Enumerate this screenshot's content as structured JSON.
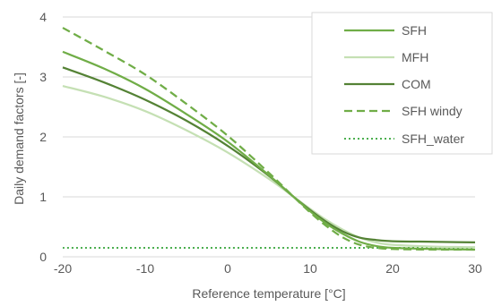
{
  "chart_data": {
    "type": "line",
    "title": "",
    "xlabel": "Reference temperature [°C]",
    "ylabel": "Daily demand factors [-]",
    "xlim": [
      -20,
      30
    ],
    "ylim": [
      0,
      4
    ],
    "x_ticks": [
      "-20",
      "-10",
      "0",
      "10",
      "20",
      "30"
    ],
    "y_ticks": [
      "0",
      "1",
      "2",
      "3",
      "4"
    ],
    "grid": "horizontal",
    "legend_position": "top-right",
    "x": [
      -20,
      -15,
      -10,
      -5,
      0,
      5,
      8,
      10,
      12,
      14,
      16,
      18,
      20,
      25,
      30
    ],
    "series": [
      {
        "name": "SFH",
        "color": "#70ad47",
        "dash": "solid",
        "values": [
          3.42,
          3.14,
          2.8,
          2.38,
          1.92,
          1.36,
          1.0,
          0.76,
          0.55,
          0.38,
          0.25,
          0.18,
          0.15,
          0.13,
          0.12
        ]
      },
      {
        "name": "MFH",
        "color": "#c5e0b4",
        "dash": "solid",
        "values": [
          2.85,
          2.67,
          2.43,
          2.11,
          1.74,
          1.3,
          1.0,
          0.8,
          0.61,
          0.45,
          0.32,
          0.24,
          0.2,
          0.17,
          0.16
        ]
      },
      {
        "name": "COM",
        "color": "#548235",
        "dash": "solid",
        "values": [
          3.16,
          2.91,
          2.62,
          2.27,
          1.85,
          1.35,
          1.0,
          0.78,
          0.58,
          0.42,
          0.32,
          0.28,
          0.26,
          0.25,
          0.24
        ]
      },
      {
        "name": "SFH windy",
        "color": "#70ad47",
        "dash": "dashed",
        "values": [
          3.82,
          3.44,
          3.04,
          2.55,
          2.02,
          1.4,
          1.0,
          0.74,
          0.51,
          0.32,
          0.2,
          0.15,
          0.13,
          0.12,
          0.12
        ]
      },
      {
        "name": "SFH_water",
        "color": "#4caf50",
        "dash": "dotted",
        "values": [
          0.15,
          0.15,
          0.15,
          0.15,
          0.15,
          0.15,
          0.15,
          0.15,
          0.15,
          0.15,
          0.15,
          0.15,
          0.15,
          0.15,
          0.15
        ]
      }
    ]
  }
}
